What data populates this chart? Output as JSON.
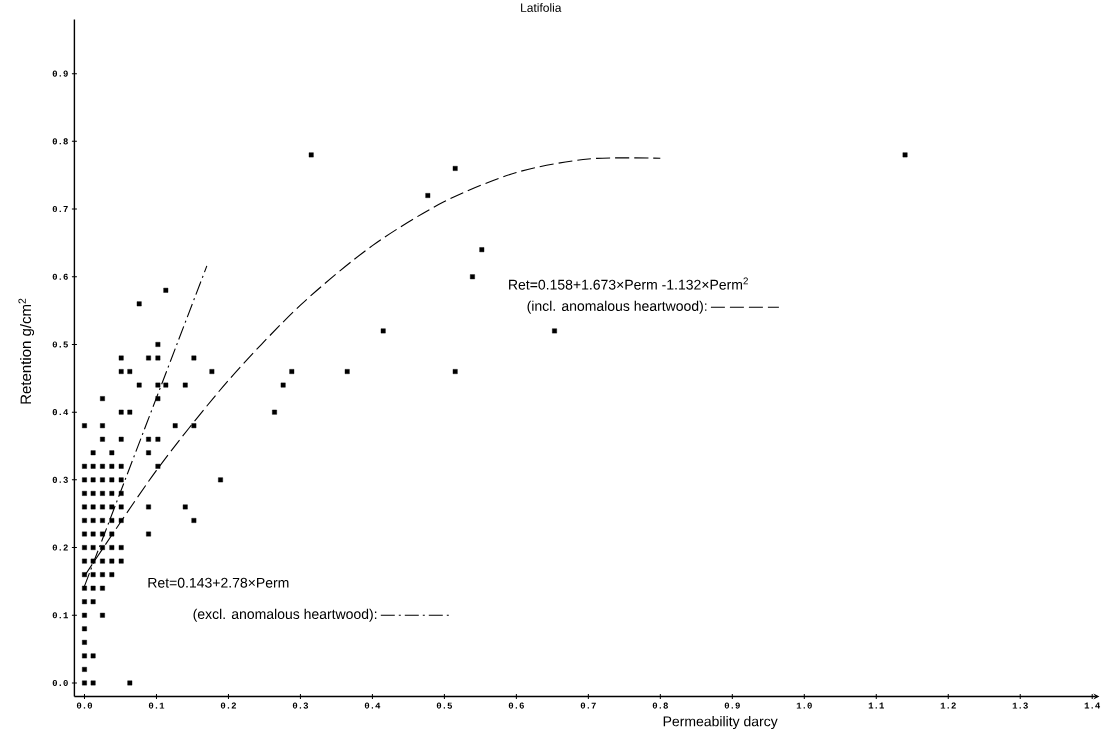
{
  "chart_data": {
    "type": "scatter",
    "title": "Latifolia",
    "xlabel": "Permeability darcy",
    "ylabel": "Retention g/cm$^{2}$",
    "xlim": [
      -0.014,
      1.41
    ],
    "ylim": [
      -0.02,
      0.98
    ],
    "xticks": [
      {
        "value": 0,
        "label": "0.0"
      },
      0.1,
      0.2,
      0.3,
      0.4,
      0.5,
      0.6,
      0.7,
      0.8,
      0.9,
      {
        "value": 1,
        "label": "1.0"
      },
      1.1,
      1.2,
      1.3,
      1.4
    ],
    "yticks": [
      {
        "value": 0,
        "label": "0.0"
      },
      0.1,
      0.2,
      0.3,
      0.4,
      0.5,
      0.6,
      0.7,
      0.8,
      0.9
    ],
    "legend": "bottom left",
    "annotations": [
      "Ret=0.158+1.673×Perm -1.132×Perm$^{2}$",
      "Ret=0.143+2.78×Perm"
    ],
    "series": [
      {
        "color": "#000000",
        "marker": "square",
        "x": [
          0,
          0.012,
          0.063,
          0,
          0,
          0.012,
          0,
          0,
          0,
          0.025,
          0,
          0.012,
          0,
          0.012,
          0.025,
          0,
          0.012,
          0.025,
          0.038,
          0,
          0.012,
          0.025,
          0.038,
          0.051,
          0,
          0.012,
          0.025,
          0.038,
          0.051,
          0,
          0.012,
          0.025,
          0.038,
          0.089,
          0,
          0.012,
          0.025,
          0.038,
          0.051,
          0.152,
          0,
          0.012,
          0.025,
          0.038,
          0.051,
          0.089,
          0.14,
          0,
          0.012,
          0.025,
          0.038,
          0.051,
          0,
          0.012,
          0.025,
          0.038,
          0.051,
          0.189,
          0,
          0.012,
          0.025,
          0.038,
          0.051,
          0.102,
          0.012,
          0.038,
          0.089,
          0.025,
          0.051,
          0.089,
          0.102,
          0,
          0.025,
          0.126,
          0.152,
          0.051,
          0.063,
          0.025,
          0.102,
          0.076,
          0.102,
          0.113,
          0.14,
          0.051,
          0.063,
          0.177,
          0.051,
          0.089,
          0.102,
          0.152,
          0.102,
          0.076,
          0.113,
          0.315,
          0.515,
          0.477,
          0.552,
          0.539,
          0.415,
          0.653,
          0.288,
          0.365,
          0.515,
          0.276,
          0.264,
          1.14
        ],
        "values": [
          0,
          0,
          0,
          0.02,
          0.04,
          0.04,
          0.06,
          0.08,
          0.1,
          0.1,
          0.12,
          0.12,
          0.14,
          0.14,
          0.14,
          0.16,
          0.16,
          0.16,
          0.16,
          0.18,
          0.18,
          0.18,
          0.18,
          0.18,
          0.2,
          0.2,
          0.2,
          0.2,
          0.2,
          0.22,
          0.22,
          0.22,
          0.22,
          0.22,
          0.24,
          0.24,
          0.24,
          0.24,
          0.24,
          0.24,
          0.26,
          0.26,
          0.26,
          0.26,
          0.26,
          0.26,
          0.26,
          0.28,
          0.28,
          0.28,
          0.28,
          0.28,
          0.3,
          0.3,
          0.3,
          0.3,
          0.3,
          0.3,
          0.32,
          0.32,
          0.32,
          0.32,
          0.32,
          0.32,
          0.34,
          0.34,
          0.34,
          0.36,
          0.36,
          0.36,
          0.36,
          0.38,
          0.38,
          0.38,
          0.38,
          0.4,
          0.4,
          0.42,
          0.42,
          0.44,
          0.44,
          0.44,
          0.44,
          0.46,
          0.46,
          0.46,
          0.48,
          0.48,
          0.48,
          0.48,
          0.5,
          0.56,
          0.58,
          0.78,
          0.76,
          0.72,
          0.64,
          0.6,
          0.52,
          0.52,
          0.46,
          0.46,
          0.46,
          0.44,
          0.4,
          0.78
        ]
      },
      {
        "type": "line",
        "name": "(excl. anomalous heartwood):",
        "color": "#000000",
        "line_style": "dashdot",
        "x": [
          0,
          0.17
        ],
        "values": [
          0.143,
          0.616
        ]
      },
      {
        "type": "line",
        "name": "(incl. anomalous heartwood):",
        "color": "#000000",
        "line_style": "dashed",
        "x": [
          0,
          0.1,
          0.2,
          0.3,
          0.4,
          0.5,
          0.6,
          0.7,
          0.8
        ],
        "values": [
          0.158,
          0.314,
          0.447,
          0.558,
          0.646,
          0.711,
          0.754,
          0.774,
          0.775
        ]
      }
    ]
  }
}
